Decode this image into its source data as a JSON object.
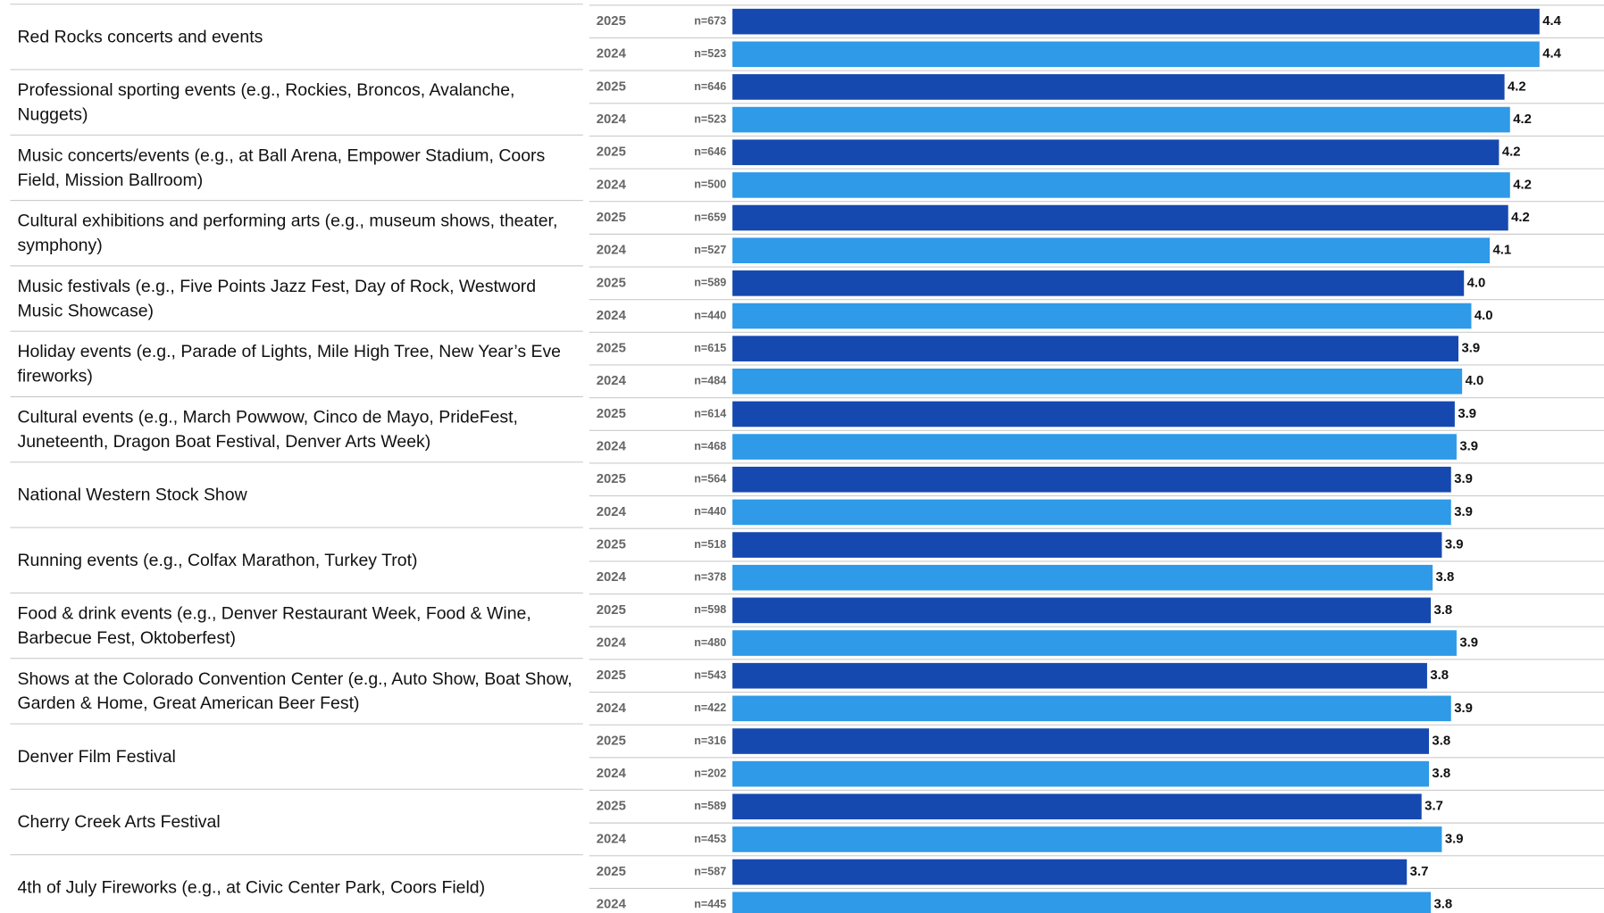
{
  "chart_data": {
    "type": "bar",
    "orientation": "horizontal",
    "categories": [
      "Red Rocks concerts and events",
      "Professional sporting events (e.g., Rockies, Broncos, Avalanche, Nuggets)",
      "Music concerts/events (e.g., at Ball Arena, Empower Stadium, Coors Field, Mission Ballroom)",
      "Cultural exhibitions and performing arts (e.g., museum shows, theater, symphony)",
      "Music festivals (e.g., Five Points Jazz Fest, Day of Rock, Westword Music Showcase)",
      "Holiday events (e.g., Parade of Lights, Mile High Tree, New Year’s Eve fireworks)",
      "Cultural events (e.g., March Powwow, Cinco de Mayo, PrideFest, Juneteenth, Dragon Boat Festival, Denver Arts Week)",
      "National Western Stock Show",
      "Running events (e.g., Colfax Marathon, Turkey Trot)",
      "Food & drink events (e.g., Denver Restaurant Week, Food & Wine, Barbecue Fest, Oktoberfest)",
      "Shows at the Colorado Convention Center (e.g., Auto Show, Boat Show, Garden & Home, Great American Beer Fest)",
      "Denver Film Festival",
      "Cherry Creek Arts Festival",
      "4th of July Fireworks (e.g., at Civic Center Park, Coors Field)"
    ],
    "xlim": [
      0,
      4.73
    ],
    "series": [
      {
        "name": "2025",
        "color": "#1649b0",
        "values": [
          4.38,
          4.19,
          4.16,
          4.21,
          3.97,
          3.94,
          3.92,
          3.9,
          3.85,
          3.79,
          3.77,
          3.78,
          3.74,
          3.66
        ],
        "value_labels": [
          "4.4",
          "4.2",
          "4.2",
          "4.2",
          "4.0",
          "3.9",
          "3.9",
          "3.9",
          "3.9",
          "3.8",
          "3.8",
          "3.8",
          "3.7",
          "3.7"
        ],
        "n_labels": [
          "n=673",
          "n=646",
          "n=646",
          "n=659",
          "n=589",
          "n=615",
          "n=614",
          "n=564",
          "n=518",
          "n=598",
          "n=543",
          "n=316",
          "n=589",
          "n=587"
        ]
      },
      {
        "name": "2024",
        "color": "#2e9ae8",
        "values": [
          4.38,
          4.22,
          4.22,
          4.11,
          4.01,
          3.96,
          3.93,
          3.9,
          3.8,
          3.93,
          3.9,
          3.78,
          3.85,
          3.79
        ],
        "value_labels": [
          "4.4",
          "4.2",
          "4.2",
          "4.1",
          "4.0",
          "4.0",
          "3.9",
          "3.9",
          "3.8",
          "3.9",
          "3.9",
          "3.8",
          "3.9",
          "3.8"
        ],
        "n_labels": [
          "n=523",
          "n=523",
          "n=500",
          "n=527",
          "n=440",
          "n=484",
          "n=468",
          "n=440",
          "n=378",
          "n=480",
          "n=422",
          "n=202",
          "n=453",
          "n=445"
        ]
      }
    ]
  }
}
